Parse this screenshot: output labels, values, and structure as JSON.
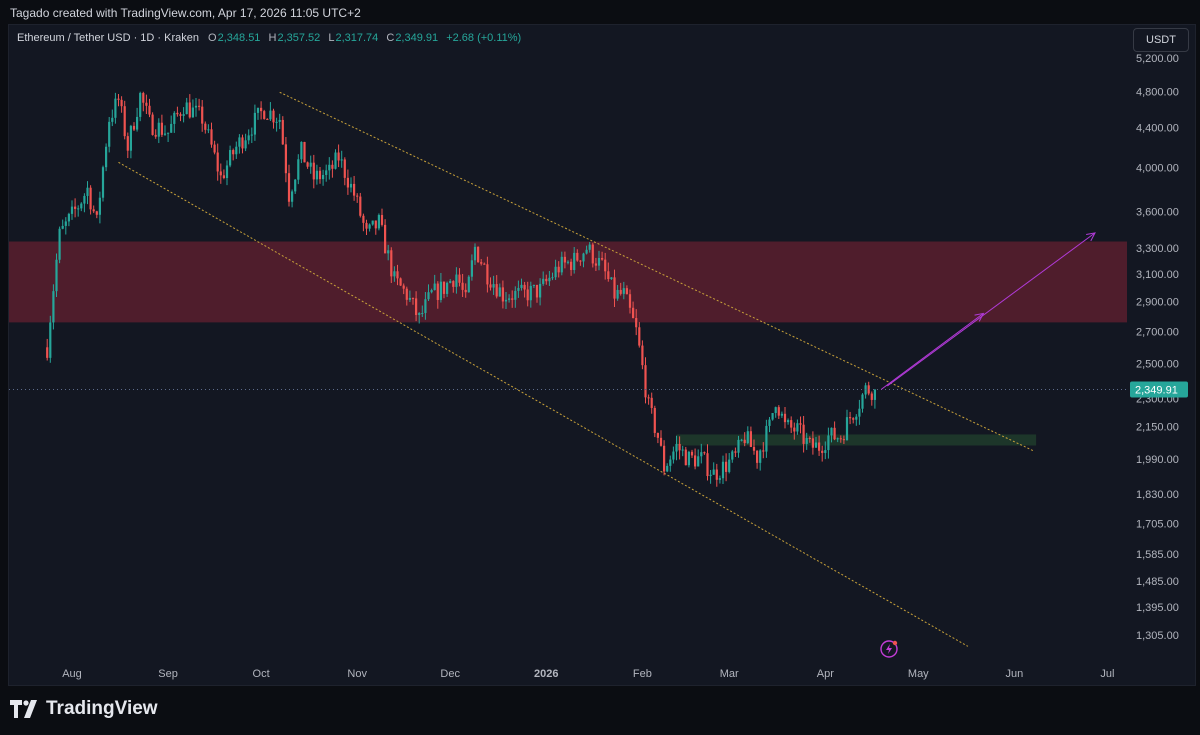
{
  "caption": "Tagado created with TradingView.com, Apr 17, 2026 11:05 UTC+2",
  "header": {
    "symbol": "Ethereum / Tether USD · 1D · Kraken",
    "open_label": "O",
    "open": "2,348.51",
    "high_label": "H",
    "high": "2,357.52",
    "low_label": "L",
    "low": "2,317.74",
    "close_label": "C",
    "close": "2,349.91",
    "change": "+2.68 (+0.11%)",
    "currency": "USDT"
  },
  "brand": "TradingView",
  "colors": {
    "background": "#131722",
    "up": "#26a69a",
    "down": "#ef5350",
    "channel": "#c9a23a",
    "resistance_zone": "#5a1f2e",
    "support_zone": "#1f3a2b",
    "projection": "#b03ad6",
    "price_tag": "#26a69a"
  },
  "chart_data": {
    "type": "candlestick",
    "title": "Ethereum / Tether USD · 1D · Kraken",
    "y_scale": "log",
    "ylim": [
      1240,
      5450
    ],
    "x_tick_labels": [
      "Aug",
      "Sep",
      "Oct",
      "Nov",
      "Dec",
      "2026",
      "Feb",
      "Mar",
      "Apr",
      "May",
      "Jun",
      "Jul"
    ],
    "y_tick_labels": [
      "5,200.00",
      "4,800.00",
      "4,400.00",
      "4,000.00",
      "3,600.00",
      "3,300.00",
      "3,100.00",
      "2,900.00",
      "2,700.00",
      "2,500.00",
      "2,300.00",
      "2,150.00",
      "1,990.00",
      "1,830.00",
      "1,705.00",
      "1,585.00",
      "1,485.00",
      "1,395.00",
      "1,305.00"
    ],
    "y_ticks": [
      5200,
      4800,
      4400,
      4000,
      3600,
      3300,
      3100,
      2900,
      2700,
      2500,
      2300,
      2150,
      1990,
      1830,
      1705,
      1585,
      1485,
      1395,
      1305
    ],
    "last_price": 2349.91,
    "last_price_label": "2,349.91",
    "resistance_zone": [
      2760,
      3350
    ],
    "support_zone": [
      2055,
      2110
    ],
    "close_path": [
      [
        "2025-07-24",
        2600
      ],
      [
        "2025-07-28",
        3400
      ],
      [
        "2025-08-03",
        3650
      ],
      [
        "2025-08-06",
        3800
      ],
      [
        "2025-08-09",
        3500
      ],
      [
        "2025-08-13",
        4500
      ],
      [
        "2025-08-16",
        4700
      ],
      [
        "2025-08-19",
        4200
      ],
      [
        "2025-08-23",
        4750
      ],
      [
        "2025-08-26",
        4450
      ],
      [
        "2025-09-01",
        4350
      ],
      [
        "2025-09-06",
        4650
      ],
      [
        "2025-09-12",
        4500
      ],
      [
        "2025-09-18",
        3900
      ],
      [
        "2025-09-23",
        4200
      ],
      [
        "2025-10-02",
        4600
      ],
      [
        "2025-10-07",
        4500
      ],
      [
        "2025-10-10",
        3750
      ],
      [
        "2025-10-14",
        4150
      ],
      [
        "2025-10-18",
        3900
      ],
      [
        "2025-10-23",
        3950
      ],
      [
        "2025-10-26",
        4100
      ],
      [
        "2025-10-31",
        3750
      ],
      [
        "2025-11-04",
        3400
      ],
      [
        "2025-11-08",
        3500
      ],
      [
        "2025-11-13",
        3050
      ],
      [
        "2025-11-17",
        2950
      ],
      [
        "2025-11-21",
        2780
      ],
      [
        "2025-11-25",
        2950
      ],
      [
        "2025-11-29",
        3000
      ],
      [
        "2025-12-03",
        3100
      ],
      [
        "2025-12-06",
        2900
      ],
      [
        "2025-12-09",
        3300
      ],
      [
        "2025-12-13",
        3100
      ],
      [
        "2025-12-18",
        2950
      ],
      [
        "2025-12-24",
        2950
      ],
      [
        "2025-12-30",
        2980
      ],
      [
        "2026-01-05",
        3150
      ],
      [
        "2026-01-10",
        3200
      ],
      [
        "2026-01-14",
        3300
      ],
      [
        "2026-01-19",
        3150
      ],
      [
        "2026-01-23",
        2950
      ],
      [
        "2026-01-26",
        2950
      ],
      [
        "2026-01-30",
        2700
      ],
      [
        "2026-02-03",
        2250
      ],
      [
        "2026-02-06",
        2100
      ],
      [
        "2026-02-08",
        1950
      ],
      [
        "2026-02-12",
        2050
      ],
      [
        "2026-02-16",
        1990
      ],
      [
        "2026-02-20",
        1990
      ],
      [
        "2026-02-24",
        1920
      ],
      [
        "2026-02-27",
        1950
      ],
      [
        "2026-03-03",
        2000
      ],
      [
        "2026-03-06",
        2100
      ],
      [
        "2026-03-10",
        2000
      ],
      [
        "2026-03-14",
        2150
      ],
      [
        "2026-03-16",
        2300
      ],
      [
        "2026-03-19",
        2150
      ],
      [
        "2026-03-23",
        2130
      ],
      [
        "2026-03-27",
        2050
      ],
      [
        "2026-03-30",
        2050
      ],
      [
        "2026-04-02",
        2100
      ],
      [
        "2026-04-06",
        2100
      ],
      [
        "2026-04-09",
        2200
      ],
      [
        "2026-04-12",
        2280
      ],
      [
        "2026-04-14",
        2350
      ],
      [
        "2026-04-17",
        2349.91
      ]
    ],
    "channel_upper": [
      [
        "2025-10-07",
        4790
      ],
      [
        "2026-06-07",
        2030
      ]
    ],
    "channel_lower": [
      [
        "2025-08-16",
        4050
      ],
      [
        "2026-05-17",
        1270
      ]
    ],
    "projection_arrows": [
      [
        [
          "2026-04-19",
          2350
        ],
        [
          "2026-05-22",
          2820
        ]
      ],
      [
        [
          "2026-04-21",
          2370
        ],
        [
          "2026-06-27",
          3420
        ]
      ]
    ]
  }
}
